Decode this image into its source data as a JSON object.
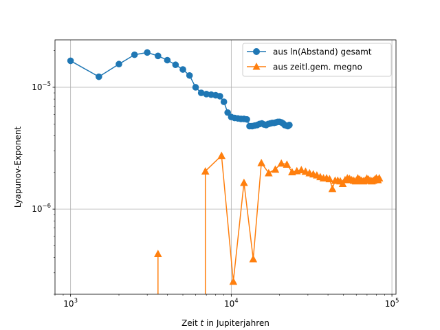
{
  "chart_data": {
    "type": "line",
    "title": "",
    "xlabel_prefix": "Zeit ",
    "xlabel_var": "t",
    "xlabel_suffix": " in Jupiterjahren",
    "ylabel": "Lyapunov-Exponent",
    "xscale": "log",
    "yscale": "log",
    "xlim": [
      800,
      106000
    ],
    "ylim": [
      2e-07,
      2.45e-05
    ],
    "grid": true,
    "legend_position": "top-right",
    "x_major_ticks": [
      {
        "value": 1000,
        "base": "10",
        "exp": "3"
      },
      {
        "value": 10000,
        "base": "10",
        "exp": "4"
      },
      {
        "value": 100000,
        "base": "10",
        "exp": "5"
      }
    ],
    "y_major_ticks": [
      {
        "value": 1e-06,
        "base": "10",
        "exp": "−6"
      },
      {
        "value": 1e-05,
        "base": "10",
        "exp": "−5"
      }
    ],
    "series": [
      {
        "name": "aus ln(Abstand) gesamt",
        "color": "#1f77b4",
        "marker": "circle",
        "x": [
          1000,
          1500,
          2000,
          2500,
          3000,
          3500,
          4000,
          4500,
          5000,
          5500,
          6000,
          6500,
          7000,
          7500,
          8000,
          8500,
          9000,
          9500,
          10000,
          10500,
          11000,
          11500,
          12000,
          12500,
          13000,
          13500,
          14000,
          14500,
          15000,
          15500,
          16000,
          16500,
          17000,
          17500,
          18000,
          18500,
          19000,
          19500,
          20000,
          20500,
          21000,
          21500,
          22000,
          22500,
          23000
        ],
        "y": [
          1.65e-05,
          1.22e-05,
          1.55e-05,
          1.85e-05,
          1.93e-05,
          1.81e-05,
          1.67e-05,
          1.53e-05,
          1.4e-05,
          1.25e-05,
          1e-05,
          9e-06,
          8.8e-06,
          8.7e-06,
          8.6e-06,
          8.45e-06,
          7.6e-06,
          6.2e-06,
          5.7e-06,
          5.6e-06,
          5.55e-06,
          5.5e-06,
          5.5e-06,
          5.45e-06,
          4.8e-06,
          4.8e-06,
          4.85e-06,
          4.9e-06,
          5e-06,
          5.05e-06,
          4.95e-06,
          4.9e-06,
          5e-06,
          5.05e-06,
          5.1e-06,
          5.1e-06,
          5.15e-06,
          5.2e-06,
          5.2e-06,
          5.15e-06,
          5.05e-06,
          4.9e-06,
          4.85e-06,
          4.8e-06,
          4.9e-06
        ]
      },
      {
        "name": "aus zeitl.gem. megno",
        "color": "#ff7f0e",
        "marker": "triangle",
        "x": [
          3500,
          6900,
          8700,
          10300,
          12000,
          13700,
          15400,
          17100,
          18800,
          20500,
          22200,
          23900,
          25600,
          27300,
          29000,
          30700,
          32400,
          34100,
          35800,
          37500,
          39200,
          40900,
          42600,
          44300,
          46000,
          47700,
          49400,
          51100,
          52800,
          54500,
          56200,
          57900,
          59600,
          61300,
          63000,
          64700,
          66400,
          68100,
          69800,
          71500,
          73200,
          74900,
          76600,
          78300,
          80000,
          81700,
          83400
        ],
        "y": [
          4.3e-07,
          2.05e-06,
          2.75e-06,
          2.55e-07,
          1.65e-06,
          3.9e-07,
          2.4e-06,
          1.98e-06,
          2.12e-06,
          2.38e-06,
          2.33e-06,
          2.02e-06,
          2.06e-06,
          2.1e-06,
          2.04e-06,
          1.98e-06,
          1.94e-06,
          1.9e-06,
          1.84e-06,
          1.8e-06,
          1.8e-06,
          1.77e-06,
          1.47e-06,
          1.72e-06,
          1.72e-06,
          1.7e-06,
          1.62e-06,
          1.74e-06,
          1.8e-06,
          1.78e-06,
          1.74e-06,
          1.72e-06,
          1.7e-06,
          1.8e-06,
          1.76e-06,
          1.72e-06,
          1.7e-06,
          1.72e-06,
          1.79e-06,
          1.76e-06,
          1.72e-06,
          1.7e-06,
          1.72e-06,
          1.76e-06,
          1.8e-06,
          1.74e-06,
          1.8e-06
        ]
      }
    ]
  }
}
